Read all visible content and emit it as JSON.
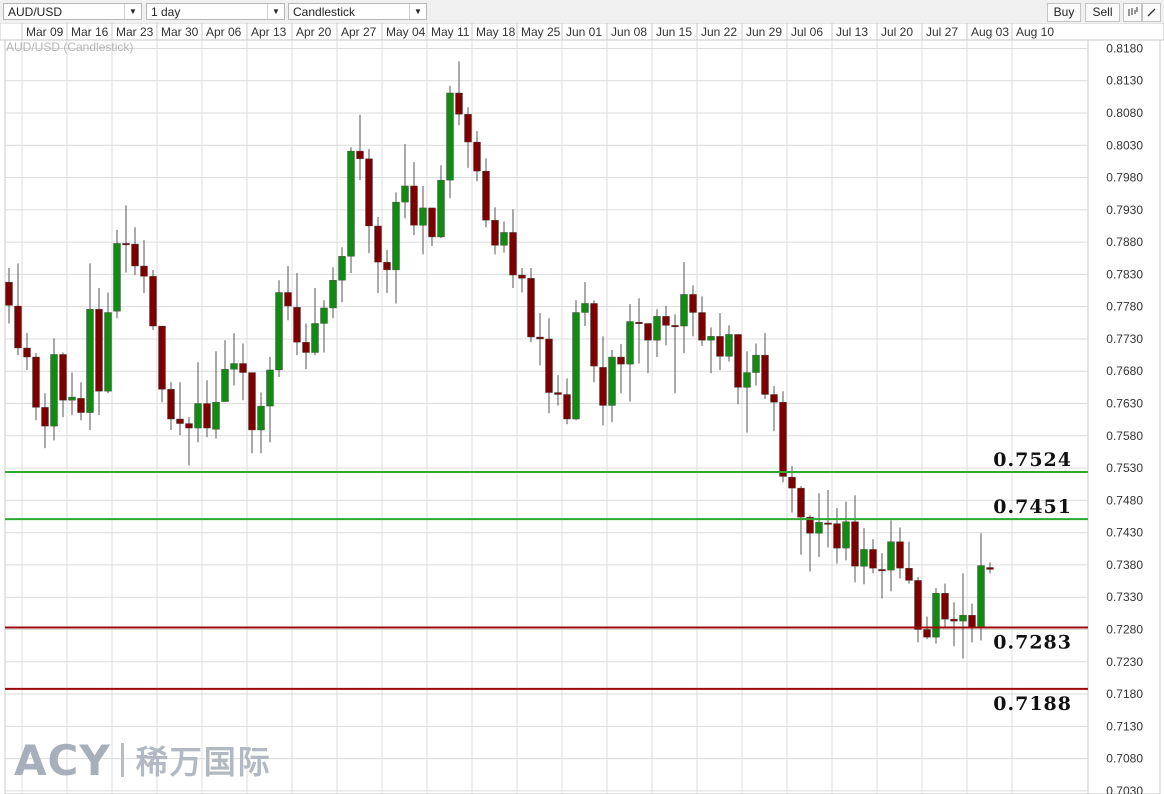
{
  "toolbar": {
    "symbol": "AUD/USD",
    "interval": "1 day",
    "chart_type": "Candlestick",
    "buy_label": "Buy",
    "sell_label": "Sell",
    "icons": [
      "candle-style-icon",
      "draw-line-icon"
    ]
  },
  "chart_title": "AUD/USD (Candlestick)",
  "watermark": {
    "brand": "ACY",
    "chinese": "稀万国际"
  },
  "colors": {
    "up": "#138a13",
    "down": "#7d0000",
    "support_line": "#2ea82e",
    "resistance_line": "#9c0a0a",
    "grid": "#dcdcdc"
  },
  "chart_data": {
    "type": "candlestick",
    "title": "AUD/USD (Candlestick)",
    "xtick_labels": [
      "Mar 09",
      "Mar 16",
      "Mar 23",
      "Mar 30",
      "Apr 06",
      "Apr 13",
      "Apr 20",
      "Apr 27",
      "May 04",
      "May 11",
      "May 18",
      "May 25",
      "Jun 01",
      "Jun 08",
      "Jun 15",
      "Jun 22",
      "Jun 29",
      "Jul 06",
      "Jul 13",
      "Jul 20",
      "Jul 27",
      "Aug 03",
      "Aug 10"
    ],
    "ytick_labels": [
      "0.8180",
      "0.8130",
      "0.8080",
      "0.8030",
      "0.7980",
      "0.7930",
      "0.7880",
      "0.7830",
      "0.7780",
      "0.7730",
      "0.7680",
      "0.7630",
      "0.7580",
      "0.7530",
      "0.7480",
      "0.7430",
      "0.7380",
      "0.7330",
      "0.7280",
      "0.7230",
      "0.7180",
      "0.7130",
      "0.7080",
      "0.7030"
    ],
    "ylim": [
      0.703,
      0.818
    ],
    "grid": true,
    "ohlc": [
      [
        0.7818,
        0.784,
        0.7754,
        0.7782
      ],
      [
        0.7781,
        0.7847,
        0.7705,
        0.7716
      ],
      [
        0.7716,
        0.7739,
        0.7682,
        0.7702
      ],
      [
        0.7702,
        0.7708,
        0.7604,
        0.7624
      ],
      [
        0.7624,
        0.7646,
        0.7561,
        0.7595
      ],
      [
        0.7595,
        0.7731,
        0.7573,
        0.7706
      ],
      [
        0.7706,
        0.7709,
        0.7609,
        0.7635
      ],
      [
        0.7635,
        0.7678,
        0.7612,
        0.764
      ],
      [
        0.7638,
        0.7663,
        0.7604,
        0.7616
      ],
      [
        0.7616,
        0.7847,
        0.7589,
        0.7776
      ],
      [
        0.7776,
        0.7809,
        0.7612,
        0.7649
      ],
      [
        0.7649,
        0.7802,
        0.7646,
        0.7771
      ],
      [
        0.7773,
        0.7899,
        0.7762,
        0.7878
      ],
      [
        0.7878,
        0.7937,
        0.7833,
        0.7877
      ],
      [
        0.7877,
        0.7903,
        0.7829,
        0.7843
      ],
      [
        0.7843,
        0.7883,
        0.7801,
        0.7827
      ],
      [
        0.7827,
        0.7837,
        0.7744,
        0.775
      ],
      [
        0.775,
        0.775,
        0.7632,
        0.7652
      ],
      [
        0.7652,
        0.7663,
        0.7589,
        0.7606
      ],
      [
        0.7606,
        0.7663,
        0.7581,
        0.7599
      ],
      [
        0.7599,
        0.7609,
        0.7534,
        0.7592
      ],
      [
        0.7592,
        0.7694,
        0.757,
        0.763
      ],
      [
        0.763,
        0.7666,
        0.7578,
        0.7592
      ],
      [
        0.759,
        0.7711,
        0.7576,
        0.7632
      ],
      [
        0.7633,
        0.7728,
        0.7633,
        0.7683
      ],
      [
        0.7683,
        0.7739,
        0.7658,
        0.7692
      ],
      [
        0.7692,
        0.7723,
        0.7635,
        0.7678
      ],
      [
        0.7678,
        0.7678,
        0.7553,
        0.7589
      ],
      [
        0.7589,
        0.7647,
        0.7553,
        0.7626
      ],
      [
        0.7626,
        0.7702,
        0.757,
        0.7682
      ],
      [
        0.7682,
        0.7821,
        0.7671,
        0.7802
      ],
      [
        0.7802,
        0.7843,
        0.7759,
        0.7781
      ],
      [
        0.7779,
        0.7832,
        0.7705,
        0.7725
      ],
      [
        0.7725,
        0.7754,
        0.7683,
        0.7709
      ],
      [
        0.7709,
        0.7809,
        0.7705,
        0.7754
      ],
      [
        0.7754,
        0.779,
        0.7709,
        0.7778
      ],
      [
        0.7778,
        0.7841,
        0.7762,
        0.7821
      ],
      [
        0.7821,
        0.7872,
        0.7787,
        0.7858
      ],
      [
        0.7858,
        0.8027,
        0.7832,
        0.8021
      ],
      [
        0.8021,
        0.8077,
        0.7976,
        0.8009
      ],
      [
        0.8009,
        0.8024,
        0.7863,
        0.7905
      ],
      [
        0.7905,
        0.7919,
        0.7801,
        0.7849
      ],
      [
        0.7849,
        0.7868,
        0.7801,
        0.7837
      ],
      [
        0.7837,
        0.7957,
        0.7785,
        0.7942
      ],
      [
        0.7942,
        0.8032,
        0.7917,
        0.7967
      ],
      [
        0.7967,
        0.8004,
        0.7891,
        0.7906
      ],
      [
        0.7906,
        0.7967,
        0.7861,
        0.7933
      ],
      [
        0.7933,
        0.7933,
        0.7874,
        0.7888
      ],
      [
        0.7888,
        0.7999,
        0.7886,
        0.7976
      ],
      [
        0.7976,
        0.8122,
        0.7948,
        0.8111
      ],
      [
        0.8111,
        0.816,
        0.8061,
        0.8078
      ],
      [
        0.8078,
        0.8089,
        0.7995,
        0.8035
      ],
      [
        0.8035,
        0.8052,
        0.7974,
        0.799
      ],
      [
        0.799,
        0.801,
        0.7903,
        0.7914
      ],
      [
        0.7914,
        0.7934,
        0.7861,
        0.7875
      ],
      [
        0.7875,
        0.7912,
        0.7864,
        0.7895
      ],
      [
        0.7895,
        0.7931,
        0.7809,
        0.7829
      ],
      [
        0.7829,
        0.784,
        0.7802,
        0.7824
      ],
      [
        0.7824,
        0.784,
        0.7725,
        0.7733
      ],
      [
        0.7733,
        0.777,
        0.7689,
        0.773
      ],
      [
        0.773,
        0.7762,
        0.7615,
        0.7647
      ],
      [
        0.7647,
        0.7674,
        0.7627,
        0.7644
      ],
      [
        0.7644,
        0.7669,
        0.7598,
        0.7606
      ],
      [
        0.7606,
        0.779,
        0.7604,
        0.7771
      ],
      [
        0.7771,
        0.7818,
        0.775,
        0.7785
      ],
      [
        0.7785,
        0.779,
        0.7663,
        0.7688
      ],
      [
        0.7686,
        0.7734,
        0.7596,
        0.7627
      ],
      [
        0.7627,
        0.7713,
        0.7601,
        0.7702
      ],
      [
        0.7702,
        0.7722,
        0.7646,
        0.7691
      ],
      [
        0.7691,
        0.7784,
        0.7633,
        0.7757
      ],
      [
        0.7756,
        0.7793,
        0.7692,
        0.7754
      ],
      [
        0.7754,
        0.7754,
        0.7677,
        0.7728
      ],
      [
        0.7728,
        0.7776,
        0.7702,
        0.7765
      ],
      [
        0.7765,
        0.7781,
        0.772,
        0.7751
      ],
      [
        0.7751,
        0.7768,
        0.7646,
        0.775
      ],
      [
        0.775,
        0.7849,
        0.7708,
        0.7799
      ],
      [
        0.7799,
        0.7813,
        0.7734,
        0.7771
      ],
      [
        0.7771,
        0.7796,
        0.7719,
        0.7728
      ],
      [
        0.7728,
        0.7748,
        0.7677,
        0.7734
      ],
      [
        0.7734,
        0.777,
        0.7682,
        0.7703
      ],
      [
        0.7703,
        0.7751,
        0.7695,
        0.7737
      ],
      [
        0.7737,
        0.7737,
        0.7629,
        0.7655
      ],
      [
        0.7655,
        0.7711,
        0.7585,
        0.7678
      ],
      [
        0.7678,
        0.7723,
        0.7658,
        0.7705
      ],
      [
        0.7705,
        0.7739,
        0.7637,
        0.7644
      ],
      [
        0.7644,
        0.7657,
        0.7587,
        0.7632
      ],
      [
        0.7632,
        0.7649,
        0.7508,
        0.7517
      ],
      [
        0.7516,
        0.7533,
        0.7461,
        0.7499
      ],
      [
        0.7499,
        0.7502,
        0.7396,
        0.7454
      ],
      [
        0.7454,
        0.7457,
        0.737,
        0.7429
      ],
      [
        0.7429,
        0.7491,
        0.7392,
        0.7446
      ],
      [
        0.7445,
        0.7496,
        0.7407,
        0.7444
      ],
      [
        0.7444,
        0.7468,
        0.7382,
        0.7406
      ],
      [
        0.7406,
        0.7478,
        0.7387,
        0.7447
      ],
      [
        0.7447,
        0.7488,
        0.7353,
        0.7378
      ],
      [
        0.7378,
        0.7437,
        0.735,
        0.7404
      ],
      [
        0.7404,
        0.742,
        0.7367,
        0.7375
      ],
      [
        0.7373,
        0.7398,
        0.7328,
        0.7372
      ],
      [
        0.7372,
        0.7449,
        0.7339,
        0.7416
      ],
      [
        0.7416,
        0.7438,
        0.7359,
        0.7375
      ],
      [
        0.7375,
        0.7416,
        0.7351,
        0.7356
      ],
      [
        0.7356,
        0.7361,
        0.726,
        0.728
      ],
      [
        0.728,
        0.73,
        0.7265,
        0.7268
      ],
      [
        0.7268,
        0.7344,
        0.7258,
        0.7336
      ],
      [
        0.7336,
        0.7351,
        0.7282,
        0.7296
      ],
      [
        0.7296,
        0.7322,
        0.7254,
        0.7293
      ],
      [
        0.7293,
        0.7367,
        0.7235,
        0.7302
      ],
      [
        0.7302,
        0.732,
        0.726,
        0.7283
      ],
      [
        0.7283,
        0.7429,
        0.7263,
        0.7379
      ],
      [
        0.7376,
        0.7384,
        0.7367,
        0.7373
      ]
    ],
    "horizontal_lines": [
      {
        "value": 0.7524,
        "label": "0.7524",
        "kind": "support"
      },
      {
        "value": 0.7451,
        "label": "0.7451",
        "kind": "support"
      },
      {
        "value": 0.7283,
        "label": "0.7283",
        "kind": "resistance"
      },
      {
        "value": 0.7188,
        "label": "0.7188",
        "kind": "resistance"
      }
    ]
  }
}
